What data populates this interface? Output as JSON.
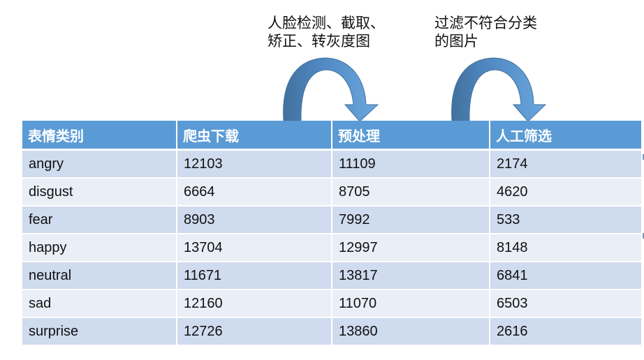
{
  "captions": {
    "step1": {
      "line1": "人脸检测、截取、",
      "line2": "矫正、转灰度图"
    },
    "step2": {
      "line1": "过滤不符合分类",
      "line2": "的图片"
    }
  },
  "colors": {
    "header_bg": "#5b9bd5",
    "row_dark": "#cfdbee",
    "row_light": "#e9eef7",
    "arrow_fill": "#5b9bd5",
    "arrow_shadow": "#41719c"
  },
  "table": {
    "headers": [
      "表情类别",
      "爬虫下载",
      "预处理",
      "人工筛选"
    ],
    "rows": [
      [
        "angry",
        "12103",
        "11109",
        "2174"
      ],
      [
        "disgust",
        "6664",
        "8705",
        "4620"
      ],
      [
        "fear",
        "8903",
        "7992",
        "533"
      ],
      [
        "happy",
        "13704",
        "12997",
        "8148"
      ],
      [
        "neutral",
        "11671",
        "13817",
        "6841"
      ],
      [
        "sad",
        "12160",
        "11070",
        "6503"
      ],
      [
        "surprise",
        "12726",
        "13860",
        "2616"
      ]
    ]
  }
}
